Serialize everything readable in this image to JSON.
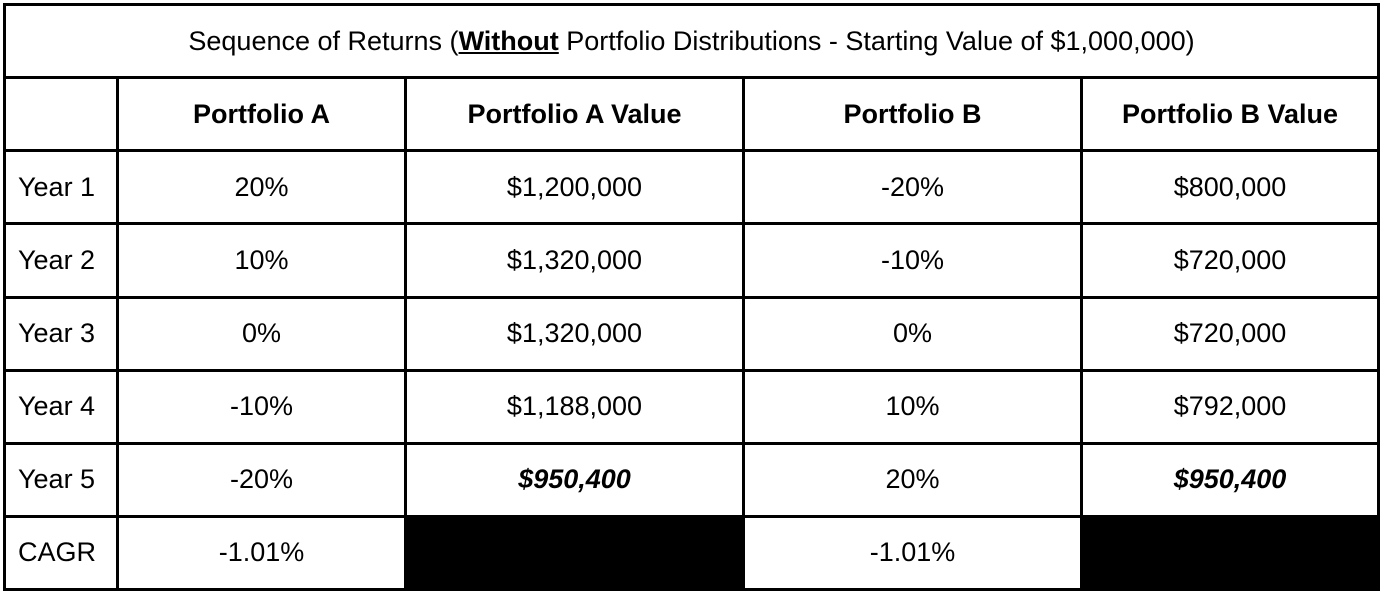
{
  "title": {
    "prefix": "Sequence of Returns (",
    "emphasis": "Without",
    "suffix": " Portfolio Distributions - Starting Value of $1,000,000)"
  },
  "headers": [
    "",
    "Portfolio A",
    "Portfolio A Value",
    "Portfolio B",
    "Portfolio B Value"
  ],
  "rows": [
    {
      "label": "Year 1",
      "a_return": "20%",
      "a_value": "$1,200,000",
      "b_return": "-20%",
      "b_value": "$800,000"
    },
    {
      "label": "Year 2",
      "a_return": "10%",
      "a_value": "$1,320,000",
      "b_return": "-10%",
      "b_value": "$720,000"
    },
    {
      "label": "Year 3",
      "a_return": "0%",
      "a_value": "$1,320,000",
      "b_return": "0%",
      "b_value": "$720,000"
    },
    {
      "label": "Year 4",
      "a_return": "-10%",
      "a_value": "$1,188,000",
      "b_return": "10%",
      "b_value": "$792,000"
    },
    {
      "label": "Year 5",
      "a_return": "-20%",
      "a_value": "$950,400",
      "b_return": "20%",
      "b_value": "$950,400"
    }
  ],
  "cagr": {
    "label": "CAGR",
    "a": "-1.01%",
    "b": "-1.01%"
  }
}
